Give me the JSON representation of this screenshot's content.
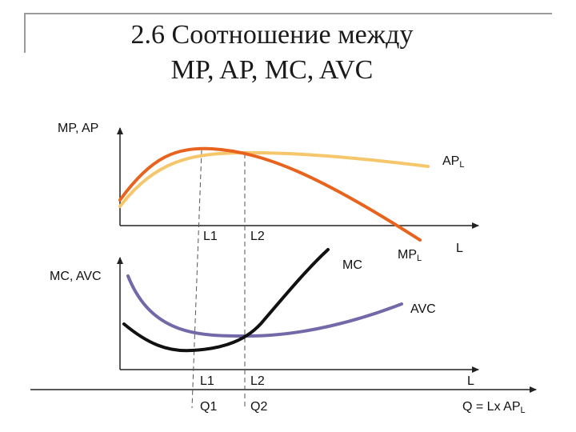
{
  "title": {
    "line1": "2.6 Соотношение между",
    "line2": "MP, AP, MC, AVC"
  },
  "top_graph": {
    "y_axis_label": "MP, AP",
    "x_axis_label": "L",
    "curve_ap": {
      "label": "AP",
      "subscript": "L",
      "color": "#f5c66a"
    },
    "curve_mp": {
      "label": "MP",
      "subscript": "L",
      "color": "#e8641e"
    },
    "tick_l1": "L1",
    "tick_l2": "L2"
  },
  "bottom_graph": {
    "y_axis_label": "MC, AVC",
    "x_axis_label": "L",
    "curve_mc": {
      "label": "MC",
      "color": "#111111"
    },
    "curve_avc": {
      "label": "AVC",
      "color": "#7468a8"
    },
    "tick_l1": "L1",
    "tick_l2": "L2"
  },
  "q_axis": {
    "label": "Q = Lx AP",
    "subscript": "L",
    "tick_q1": "Q1",
    "tick_q2": "Q2"
  }
}
